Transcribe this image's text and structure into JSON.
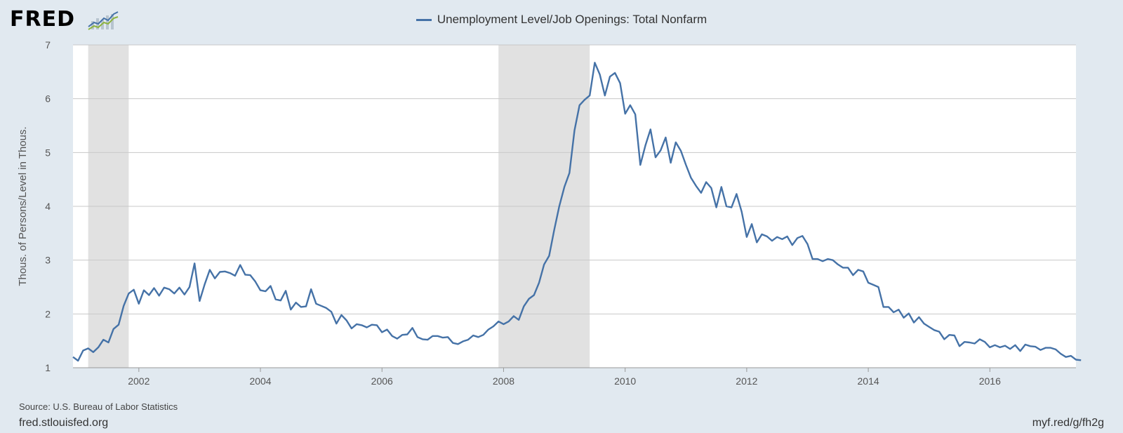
{
  "logo": {
    "text": "FRED",
    "icon": "fred-graph-logo-icon"
  },
  "footer": {
    "source": "Source: U.S. Bureau of Labor Statistics",
    "site": "fred.stlouisfed.org",
    "short_url": "myf.red/g/fh2g"
  },
  "colors": {
    "line": "#4572a7",
    "recession": "#e1e1e1",
    "background": "#e1e9f0",
    "plot_bg": "#ffffff",
    "grid": "#c8c8c8"
  },
  "chart_data": {
    "type": "line",
    "title": "",
    "xlabel": "",
    "ylabel": "Thous. of Persons/Level in Thous.",
    "ylim": [
      1,
      7
    ],
    "xlim": [
      "2000-12",
      "2017-06"
    ],
    "yticks": [
      1,
      2,
      3,
      4,
      5,
      6,
      7
    ],
    "xticks": [
      "2002",
      "2004",
      "2006",
      "2008",
      "2010",
      "2012",
      "2014",
      "2016"
    ],
    "grid": "horizontal",
    "legend_position": "top-center",
    "recessions": [
      {
        "start": "2001-03",
        "end": "2001-11"
      },
      {
        "start": "2007-12",
        "end": "2009-06"
      }
    ],
    "series": [
      {
        "name": "Unemployment Level/Job Openings: Total Nonfarm",
        "start": "2000-12",
        "frequency": "monthly",
        "values": [
          1.2,
          1.13,
          1.32,
          1.36,
          1.29,
          1.38,
          1.52,
          1.47,
          1.72,
          1.8,
          2.15,
          2.38,
          2.45,
          2.19,
          2.44,
          2.35,
          2.48,
          2.34,
          2.49,
          2.46,
          2.38,
          2.49,
          2.36,
          2.5,
          2.94,
          2.24,
          2.55,
          2.82,
          2.66,
          2.78,
          2.79,
          2.76,
          2.71,
          2.91,
          2.73,
          2.72,
          2.6,
          2.44,
          2.42,
          2.52,
          2.27,
          2.25,
          2.43,
          2.08,
          2.21,
          2.13,
          2.14,
          2.46,
          2.19,
          2.15,
          2.11,
          2.04,
          1.82,
          1.98,
          1.88,
          1.73,
          1.81,
          1.79,
          1.75,
          1.8,
          1.79,
          1.66,
          1.71,
          1.59,
          1.54,
          1.61,
          1.62,
          1.74,
          1.57,
          1.53,
          1.52,
          1.59,
          1.59,
          1.56,
          1.57,
          1.46,
          1.44,
          1.49,
          1.52,
          1.6,
          1.57,
          1.61,
          1.71,
          1.77,
          1.86,
          1.81,
          1.86,
          1.96,
          1.89,
          2.14,
          2.28,
          2.35,
          2.58,
          2.92,
          3.08,
          3.56,
          4.0,
          4.36,
          4.62,
          5.41,
          5.88,
          5.98,
          6.06,
          6.67,
          6.45,
          6.06,
          6.41,
          6.48,
          6.29,
          5.72,
          5.88,
          5.71,
          4.77,
          5.13,
          5.43,
          4.91,
          5.04,
          5.28,
          4.81,
          5.19,
          5.03,
          4.77,
          4.53,
          4.38,
          4.25,
          4.45,
          4.34,
          3.98,
          4.36,
          4.0,
          3.98,
          4.23,
          3.9,
          3.43,
          3.67,
          3.33,
          3.48,
          3.44,
          3.36,
          3.43,
          3.39,
          3.44,
          3.28,
          3.41,
          3.45,
          3.3,
          3.02,
          3.02,
          2.98,
          3.02,
          3.0,
          2.92,
          2.86,
          2.86,
          2.72,
          2.82,
          2.79,
          2.58,
          2.54,
          2.5,
          2.13,
          2.13,
          2.03,
          2.08,
          1.93,
          2.01,
          1.84,
          1.94,
          1.82,
          1.76,
          1.7,
          1.67,
          1.53,
          1.61,
          1.6,
          1.4,
          1.48,
          1.47,
          1.45,
          1.53,
          1.48,
          1.38,
          1.42,
          1.38,
          1.41,
          1.35,
          1.42,
          1.31,
          1.43,
          1.4,
          1.39,
          1.33,
          1.37,
          1.37,
          1.34,
          1.26,
          1.2,
          1.22,
          1.15,
          1.14
        ]
      }
    ]
  }
}
